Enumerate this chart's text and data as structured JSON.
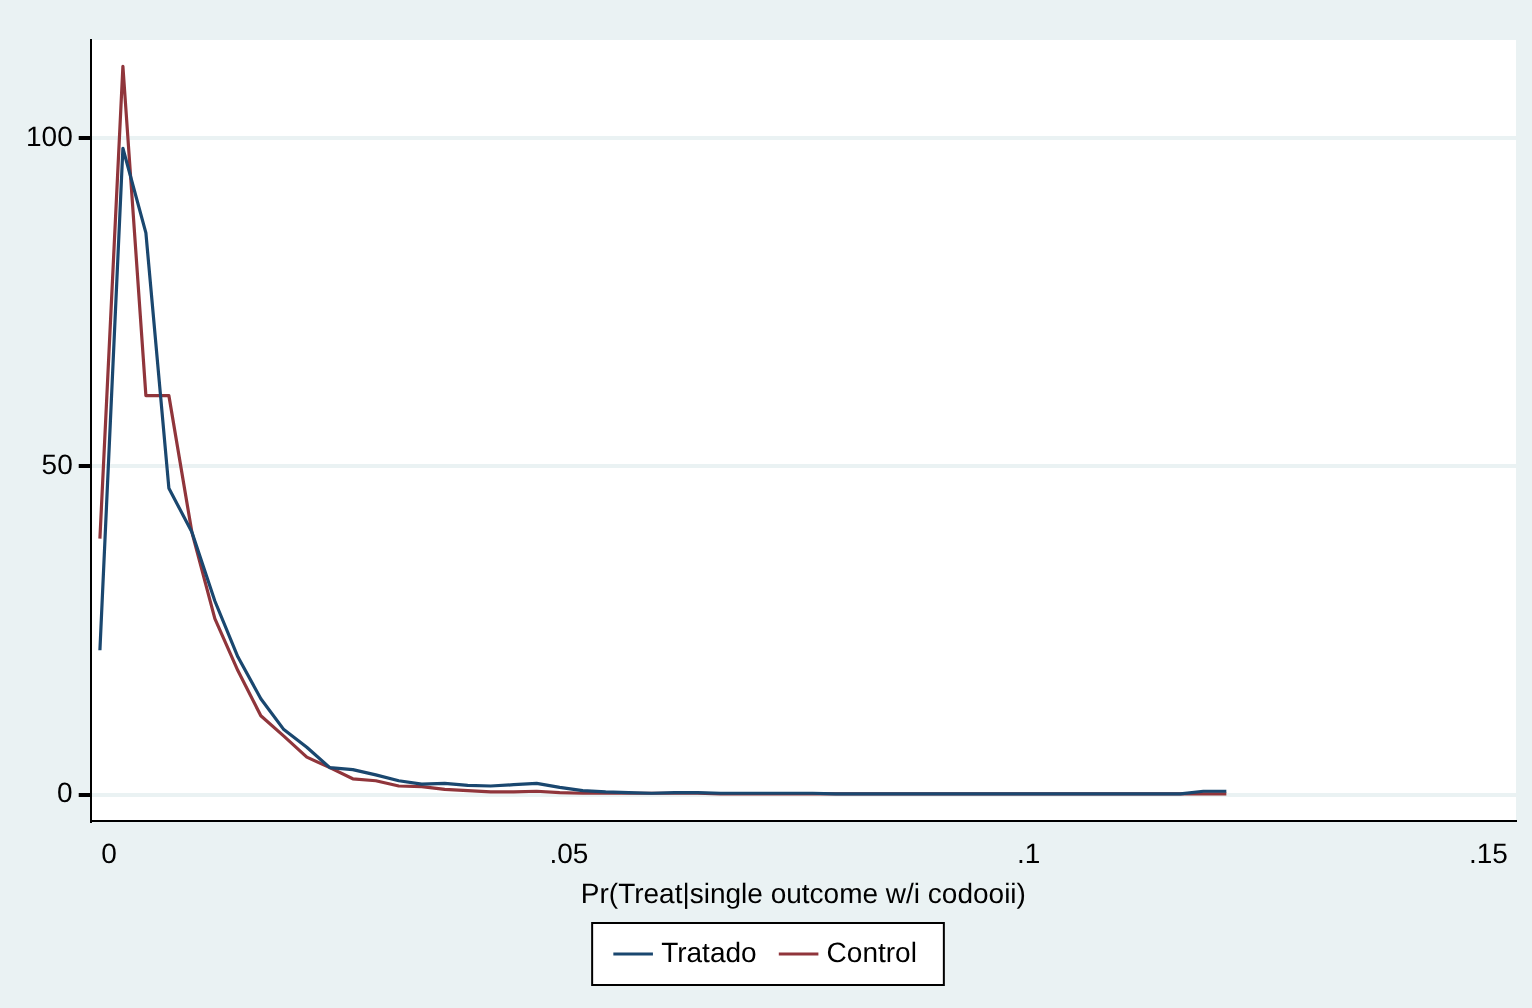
{
  "chart_data": {
    "type": "line",
    "xlabel": "Pr(Treat|single outcome w/i codooii)",
    "x": [
      -0.001,
      0.0015,
      0.004,
      0.0065,
      0.009,
      0.0115,
      0.014,
      0.0165,
      0.019,
      0.0215,
      0.024,
      0.0265,
      0.029,
      0.0315,
      0.034,
      0.0365,
      0.039,
      0.0415,
      0.044,
      0.0465,
      0.049,
      0.0515,
      0.054,
      0.0565,
      0.059,
      0.0615,
      0.064,
      0.0665,
      0.069,
      0.0715,
      0.074,
      0.0765,
      0.079,
      0.0815,
      0.084,
      0.0865,
      0.089,
      0.0915,
      0.094,
      0.0965,
      0.099,
      0.1015,
      0.104,
      0.1065,
      0.109,
      0.1115,
      0.114,
      0.1165,
      0.119,
      0.1215
    ],
    "series": [
      {
        "name": "Tratado",
        "color": "#1a476f",
        "values": [
          22,
          98.5,
          85.6,
          46.7,
          40,
          29.5,
          21,
          14.6,
          9.9,
          7.2,
          4.1,
          3.8,
          3.0,
          2.1,
          1.6,
          1.7,
          1.4,
          1.3,
          1.5,
          1.7,
          1.1,
          0.6,
          0.4,
          0.3,
          0.2,
          0.3,
          0.3,
          0.2,
          0.2,
          0.2,
          0.2,
          0.2,
          0.1,
          0.1,
          0.1,
          0.1,
          0.1,
          0.1,
          0.1,
          0.1,
          0.1,
          0.1,
          0.1,
          0.1,
          0.1,
          0.1,
          0.1,
          0.1,
          0.5,
          0.5
        ]
      },
      {
        "name": "Control",
        "color": "#90353b",
        "values": [
          39,
          111,
          60.8,
          60.8,
          40,
          26.8,
          18.9,
          12,
          8.9,
          5.7,
          4.1,
          2.4,
          2.1,
          1.3,
          1.2,
          0.8,
          0.6,
          0.4,
          0.4,
          0.5,
          0.3,
          0.2,
          0.2,
          0.2,
          0.2,
          0.2,
          0.2,
          0.1,
          0.1,
          0.1,
          0.1,
          0.1,
          0.1,
          0.1,
          0.1,
          0.1,
          0.1,
          0.1,
          0.1,
          0.1,
          0.1,
          0.1,
          0.1,
          0.1,
          0.1,
          0.1,
          0.1,
          0.1,
          0.1,
          0.1
        ]
      }
    ],
    "xlim": [
      -0.002,
      0.153
    ],
    "xticks": [
      {
        "value": 0,
        "label": "0"
      },
      {
        "value": 0.05,
        "label": ".05"
      },
      {
        "value": 0.1,
        "label": ".1"
      },
      {
        "value": 0.15,
        "label": ".15"
      }
    ],
    "ylim": [
      -4,
      115
    ],
    "yticks": [
      0,
      50,
      100
    ],
    "grid": "y",
    "legend": "bottom",
    "marker": "none",
    "line_style": "solid"
  }
}
